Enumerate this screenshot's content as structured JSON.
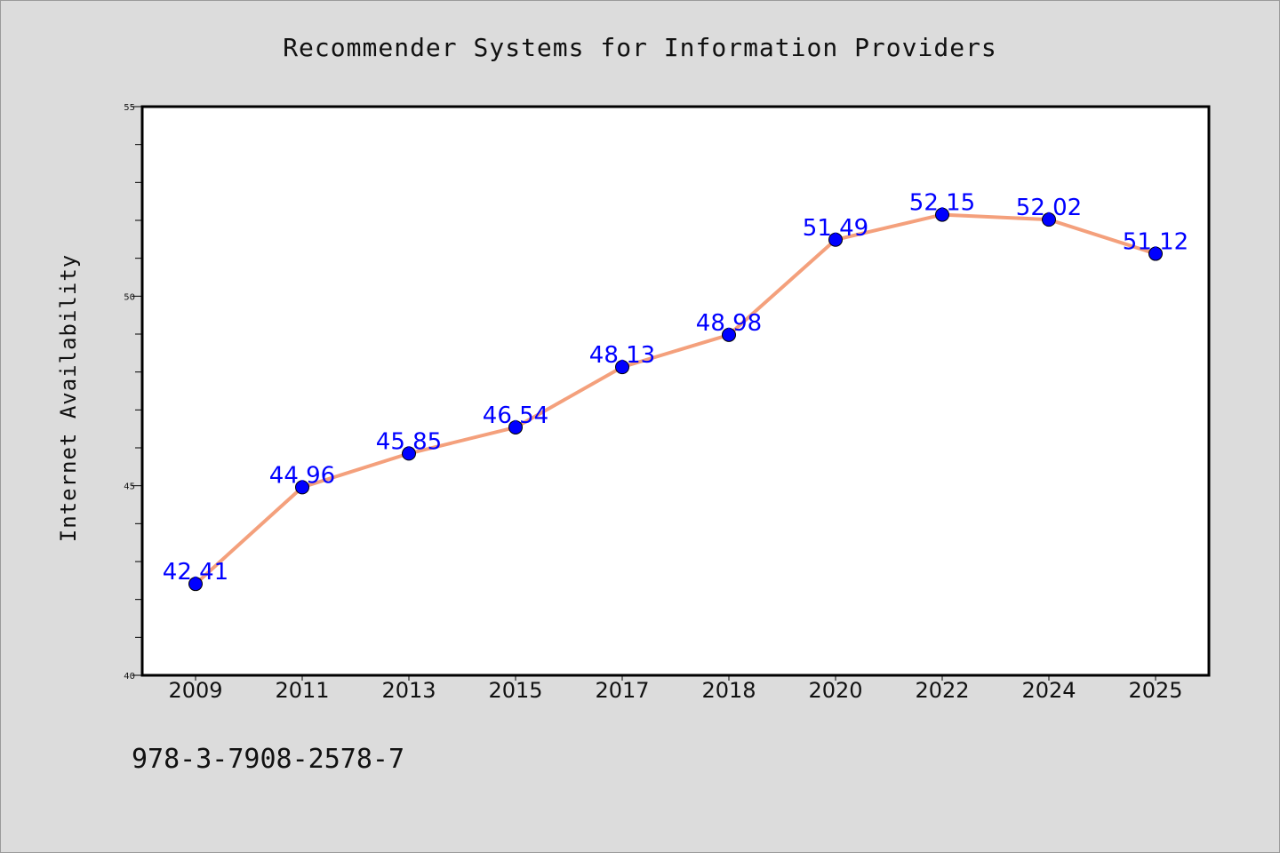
{
  "chart_data": {
    "type": "line",
    "title": "Recommender Systems for Information Providers",
    "xlabel": "",
    "ylabel": "Internet Availability",
    "categories": [
      "2009",
      "2011",
      "2013",
      "2015",
      "2017",
      "2018",
      "2020",
      "2022",
      "2024",
      "2025"
    ],
    "series": [
      {
        "values": [
          42.41,
          44.96,
          45.85,
          46.54,
          48.13,
          48.98,
          51.49,
          52.15,
          52.02,
          51.12
        ],
        "data_labels": [
          "42.41",
          "44.96",
          "45.85",
          "46.54",
          "48.13",
          "48.98",
          "51.49",
          "52.15",
          "52.02",
          "51.12"
        ],
        "line_color": "#f4a07c",
        "marker_color": "#0000ff",
        "label_color": "#0000ff"
      }
    ],
    "ylim": [
      40,
      55
    ],
    "y_major_ticks": [
      40,
      45,
      50,
      55
    ],
    "y_major_tick_labels": [
      "40",
      "45",
      "50",
      "55"
    ],
    "y_minor_step": 1,
    "grid": false,
    "legend": "none",
    "background_color": "#dcdcdc",
    "plot_background_color": "#ffffff"
  },
  "footer": {
    "text": "978-3-7908-2578-7"
  }
}
